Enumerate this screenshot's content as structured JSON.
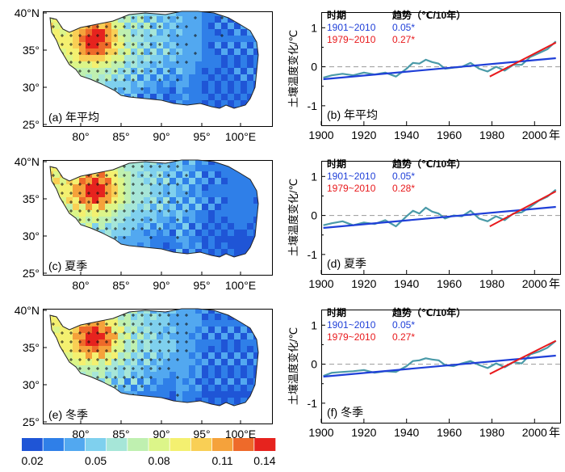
{
  "colors": {
    "blue": "#1f3fd8",
    "red": "#e8191c",
    "teal": "#4a9aa8",
    "dash": "#9a9a9a"
  },
  "colorbar": {
    "colors": [
      "#1f55d6",
      "#2f7fe8",
      "#52a8f0",
      "#7fd0ee",
      "#a6e6d8",
      "#bff0b0",
      "#dcf589",
      "#f4f070",
      "#f9cf55",
      "#f5a23b",
      "#ee6a2a",
      "#e6231e"
    ],
    "tick_labels": [
      "0.02",
      "0.05",
      "0.08",
      "0.11",
      "0.14"
    ],
    "tick_bins": [
      0,
      3,
      6,
      9,
      12
    ]
  },
  "maps": [
    {
      "label": "(a) 年平均",
      "lat_labels": [
        "40°N",
        "35°",
        "30°",
        "25°"
      ],
      "lon_labels": [
        "80°",
        "85°",
        "90°",
        "95°",
        "100°E"
      ]
    },
    {
      "label": "(c) 夏季",
      "lat_labels": [
        "40°N",
        "35°",
        "30°",
        "25°"
      ],
      "lon_labels": [
        "80°",
        "85°",
        "90°",
        "95°",
        "100°E"
      ]
    },
    {
      "label": "(e) 冬季",
      "lat_labels": [
        "40°N",
        "35°",
        "30°",
        "25°"
      ],
      "lon_labels": [
        "80°",
        "85°",
        "90°",
        "95°",
        "100°E"
      ]
    }
  ],
  "chart_data": [
    {
      "type": "line",
      "panel_label": "(b) 年平均",
      "ylabel": "土壤温度变化/℃",
      "xlabel": "年",
      "x_ticks": [
        1900,
        1920,
        1940,
        1960,
        1980,
        2000
      ],
      "y_ticks": [
        -1,
        0,
        1
      ],
      "xlim": [
        1900,
        2012
      ],
      "ylim": [
        -1.5,
        1.4
      ],
      "legend": {
        "period_header": "时期",
        "trend_header": "趋势（℃/10年）",
        "rows": [
          {
            "period": "1901~2010",
            "trend": "0.05*",
            "color": "blue"
          },
          {
            "period": "1979~2010",
            "trend": "0.27*",
            "color": "red"
          }
        ]
      },
      "series": [
        {
          "name": "anomaly",
          "x": [
            1901,
            1905,
            1910,
            1915,
            1920,
            1925,
            1930,
            1935,
            1940,
            1943,
            1946,
            1949,
            1952,
            1955,
            1958,
            1962,
            1966,
            1970,
            1974,
            1978,
            1982,
            1986,
            1990,
            1994,
            1998,
            2002,
            2006,
            2010
          ],
          "values": [
            -0.28,
            -0.22,
            -0.18,
            -0.22,
            -0.15,
            -0.2,
            -0.15,
            -0.25,
            -0.05,
            0.1,
            0.08,
            0.18,
            0.12,
            0.08,
            -0.05,
            -0.02,
            0.0,
            0.1,
            -0.05,
            -0.12,
            0.0,
            -0.1,
            0.05,
            0.05,
            0.25,
            0.35,
            0.45,
            0.65
          ]
        },
        {
          "name": "trend 1901~2010",
          "x": [
            1901,
            2010
          ],
          "values": [
            -0.32,
            0.22
          ]
        },
        {
          "name": "trend 1979~2010",
          "x": [
            1979,
            2010
          ],
          "values": [
            -0.25,
            0.62
          ]
        }
      ]
    },
    {
      "type": "line",
      "panel_label": "(d) 夏季",
      "ylabel": "土壤温度变化/℃",
      "xlabel": "年",
      "x_ticks": [
        1900,
        1920,
        1940,
        1960,
        1980,
        2000
      ],
      "y_ticks": [
        -1,
        0,
        1
      ],
      "xlim": [
        1900,
        2012
      ],
      "ylim": [
        -1.5,
        1.4
      ],
      "legend": {
        "period_header": "时期",
        "trend_header": "趋势（℃/10年）",
        "rows": [
          {
            "period": "1901~2010",
            "trend": "0.05*",
            "color": "blue"
          },
          {
            "period": "1979~2010",
            "trend": "0.28*",
            "color": "red"
          }
        ]
      },
      "series": [
        {
          "name": "anomaly",
          "x": [
            1901,
            1905,
            1910,
            1915,
            1920,
            1925,
            1930,
            1935,
            1940,
            1943,
            1946,
            1949,
            1952,
            1955,
            1958,
            1962,
            1966,
            1970,
            1974,
            1978,
            1982,
            1986,
            1990,
            1994,
            1998,
            2002,
            2006,
            2010
          ],
          "values": [
            -0.25,
            -0.2,
            -0.15,
            -0.25,
            -0.18,
            -0.22,
            -0.12,
            -0.28,
            -0.02,
            0.12,
            0.05,
            0.2,
            0.1,
            0.05,
            -0.08,
            0.0,
            -0.02,
            0.12,
            -0.08,
            -0.15,
            -0.02,
            -0.12,
            0.05,
            0.08,
            0.22,
            0.38,
            0.48,
            0.66
          ]
        },
        {
          "name": "trend 1901~2010",
          "x": [
            1901,
            2010
          ],
          "values": [
            -0.32,
            0.22
          ]
        },
        {
          "name": "trend 1979~2010",
          "x": [
            1979,
            2010
          ],
          "values": [
            -0.28,
            0.62
          ]
        }
      ]
    },
    {
      "type": "line",
      "panel_label": "(f) 冬季",
      "ylabel": "土壤温度变化/℃",
      "xlabel": "年",
      "x_ticks": [
        1900,
        1920,
        1940,
        1960,
        1980,
        2000
      ],
      "y_ticks": [
        -1,
        0,
        1
      ],
      "xlim": [
        1900,
        2012
      ],
      "ylim": [
        -1.5,
        1.4
      ],
      "legend": {
        "period_header": "时期",
        "trend_header": "趋势（℃/10年）",
        "rows": [
          {
            "period": "1901~2010",
            "trend": "0.05*",
            "color": "blue"
          },
          {
            "period": "1979~2010",
            "trend": "0.27*",
            "color": "red"
          }
        ]
      },
      "series": [
        {
          "name": "anomaly",
          "x": [
            1901,
            1905,
            1910,
            1915,
            1920,
            1925,
            1930,
            1935,
            1940,
            1943,
            1946,
            1949,
            1952,
            1955,
            1958,
            1962,
            1966,
            1970,
            1974,
            1978,
            1982,
            1986,
            1990,
            1994,
            1998,
            2002,
            2006,
            2010
          ],
          "values": [
            -0.3,
            -0.22,
            -0.2,
            -0.18,
            -0.15,
            -0.22,
            -0.18,
            -0.2,
            -0.05,
            0.08,
            0.1,
            0.15,
            0.12,
            0.1,
            -0.02,
            -0.05,
            0.02,
            0.08,
            -0.02,
            -0.1,
            0.02,
            -0.08,
            0.05,
            0.02,
            0.25,
            0.32,
            0.42,
            0.6
          ]
        },
        {
          "name": "trend 1901~2010",
          "x": [
            1901,
            2010
          ],
          "values": [
            -0.32,
            0.22
          ]
        },
        {
          "name": "trend 1979~2010",
          "x": [
            1979,
            2010
          ],
          "values": [
            -0.25,
            0.6
          ]
        }
      ]
    }
  ]
}
